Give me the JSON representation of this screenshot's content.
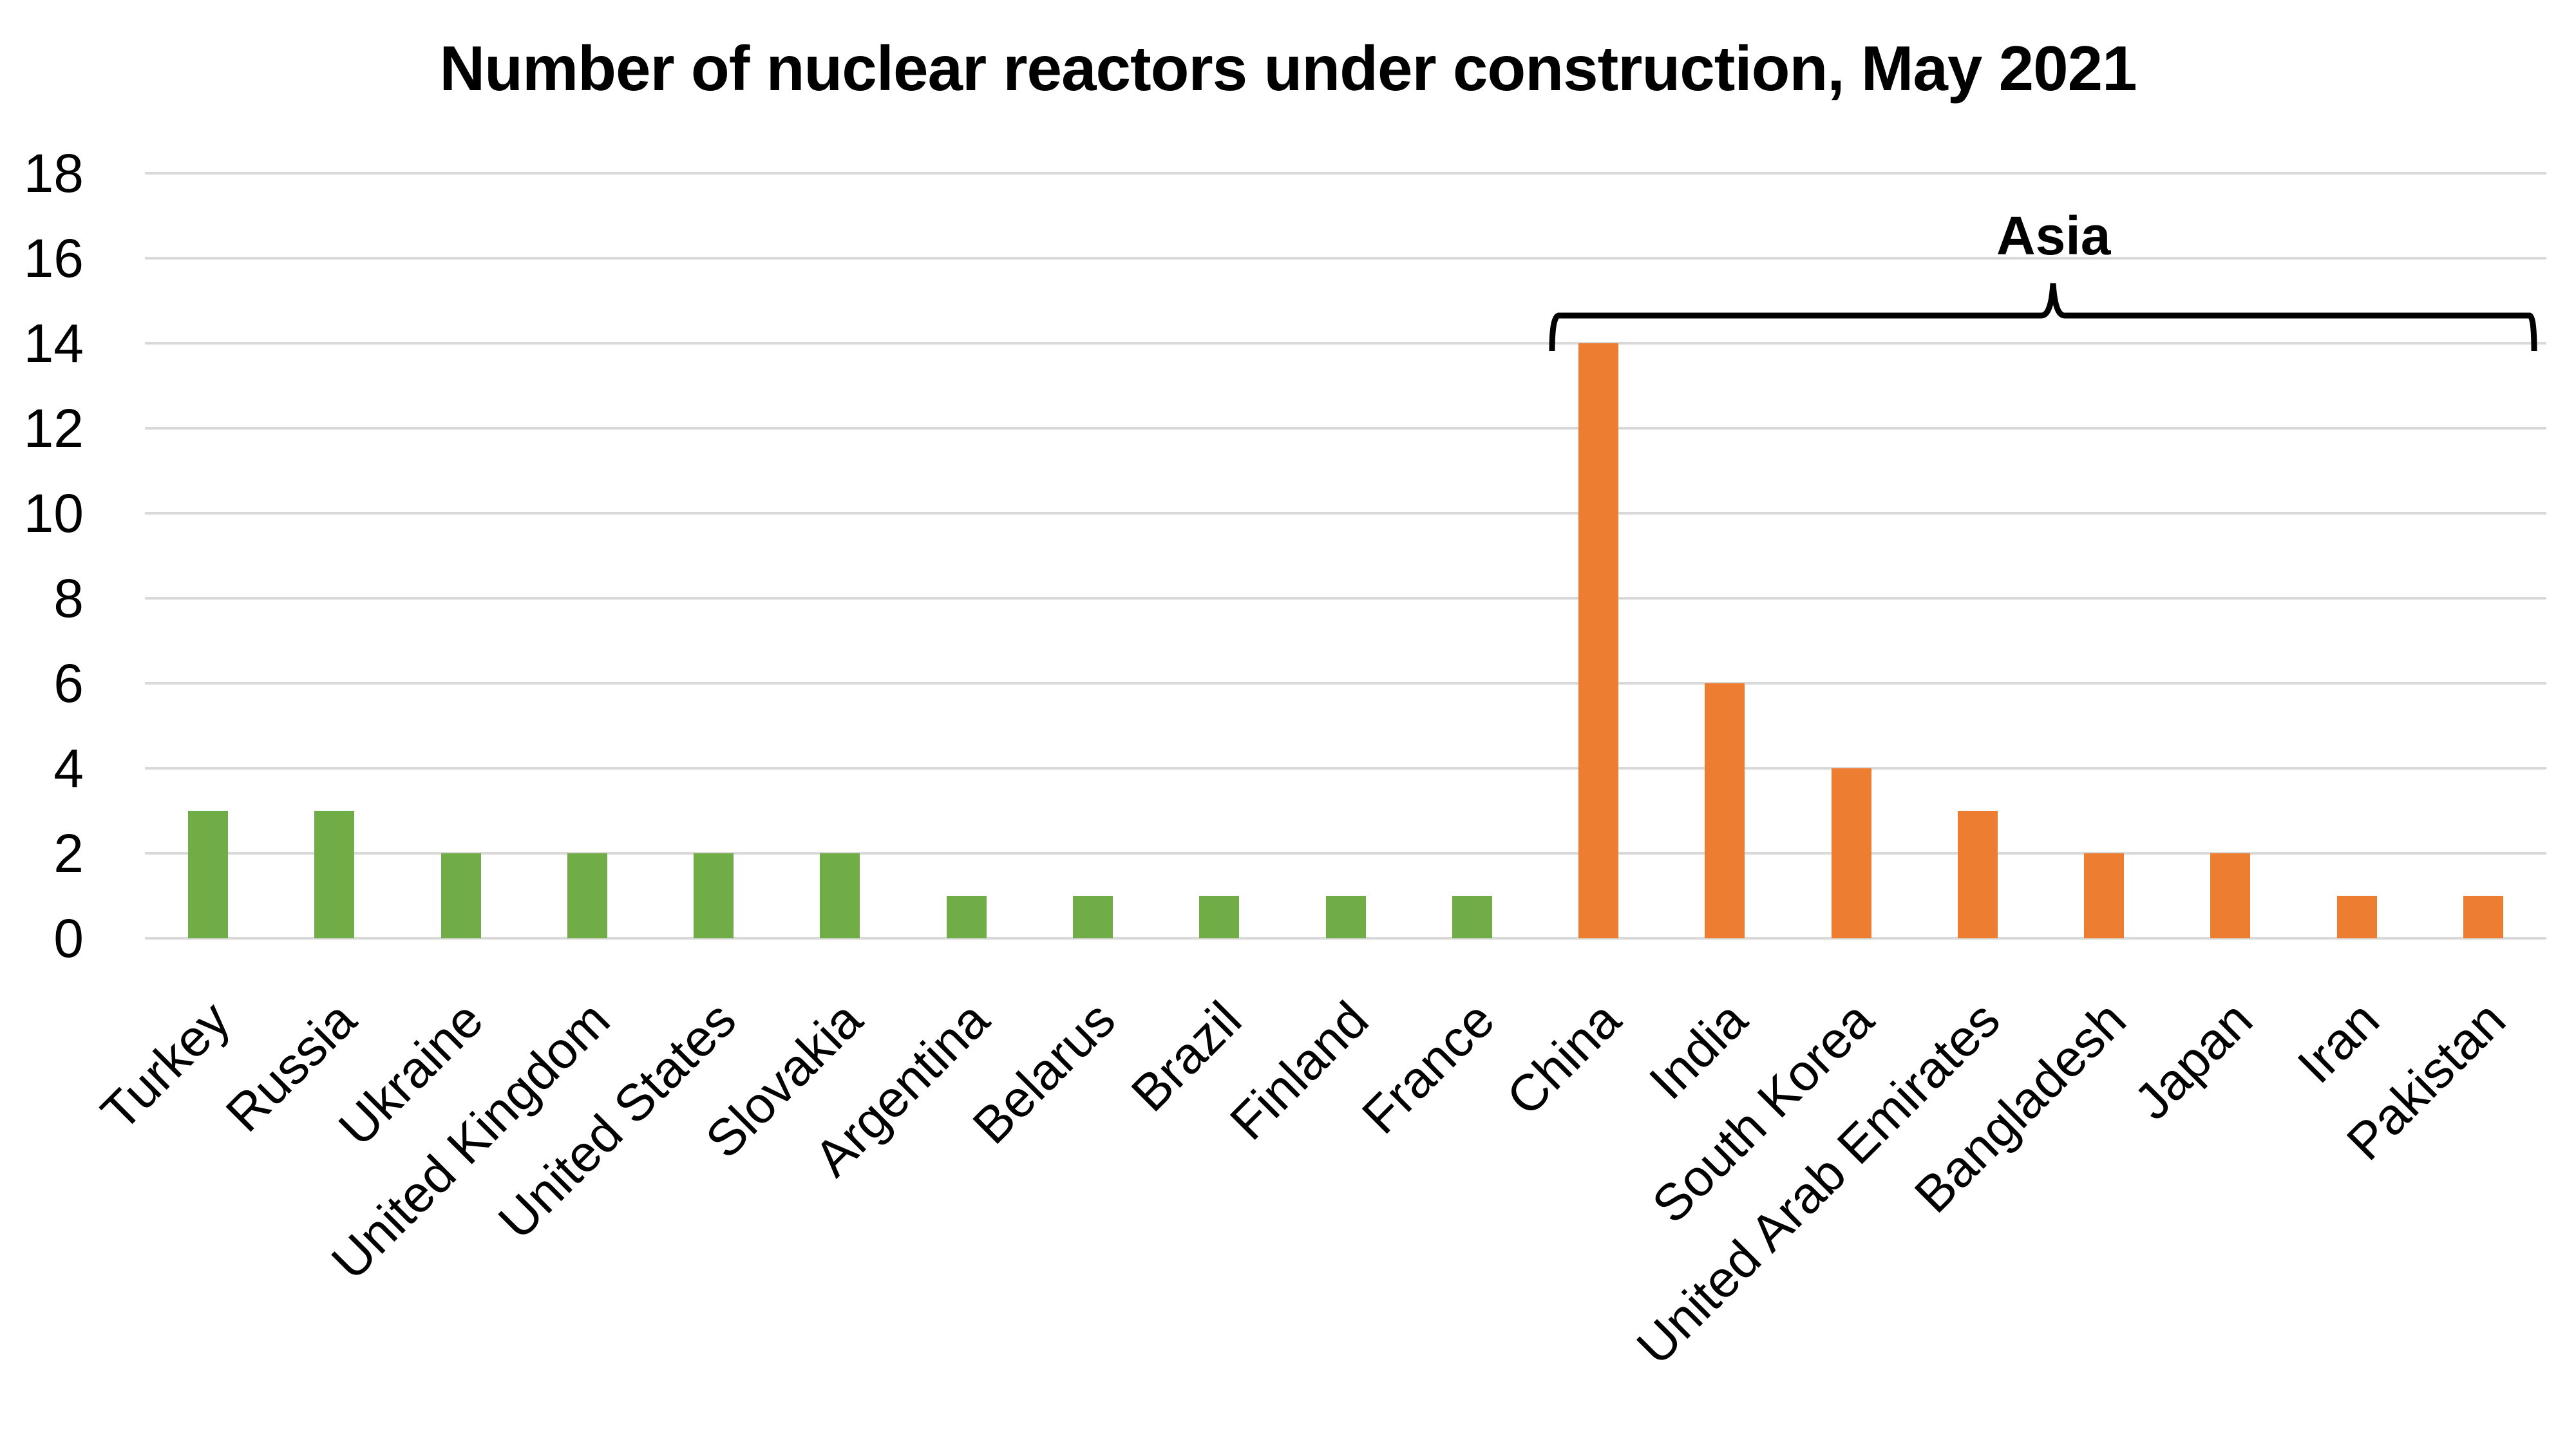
{
  "chart_data": {
    "type": "bar",
    "title": "Number of nuclear reactors under construction, May 2021",
    "xlabel": "",
    "ylabel": "",
    "ylim": [
      0,
      18
    ],
    "yticks": [
      0,
      2,
      4,
      6,
      8,
      10,
      12,
      14,
      16,
      18
    ],
    "grid": true,
    "legend": null,
    "categories": [
      "Turkey",
      "Russia",
      "Ukraine",
      "United Kingdom",
      "United States",
      "Slovakia",
      "Argentina",
      "Belarus",
      "Brazil",
      "Finland",
      "France",
      "China",
      "India",
      "South Korea",
      "United Arab Emirates",
      "Bangladesh",
      "Japan",
      "Iran",
      "Pakistan"
    ],
    "values": [
      3,
      3,
      2,
      2,
      2,
      2,
      1,
      1,
      1,
      1,
      1,
      14,
      6,
      4,
      3,
      2,
      2,
      1,
      1
    ],
    "bar_colors": [
      "#70AD47",
      "#70AD47",
      "#70AD47",
      "#70AD47",
      "#70AD47",
      "#70AD47",
      "#70AD47",
      "#70AD47",
      "#70AD47",
      "#70AD47",
      "#70AD47",
      "#ED7D31",
      "#ED7D31",
      "#ED7D31",
      "#ED7D31",
      "#ED7D31",
      "#ED7D31",
      "#ED7D31",
      "#ED7D31"
    ],
    "annotations": [
      {
        "text": "Asia",
        "type": "brace",
        "spans": [
          "China",
          "Pakistan"
        ]
      }
    ]
  },
  "colors": {
    "non_asia": "#70AD47",
    "asia": "#ED7D31",
    "gridline": "#D9D9D9"
  }
}
